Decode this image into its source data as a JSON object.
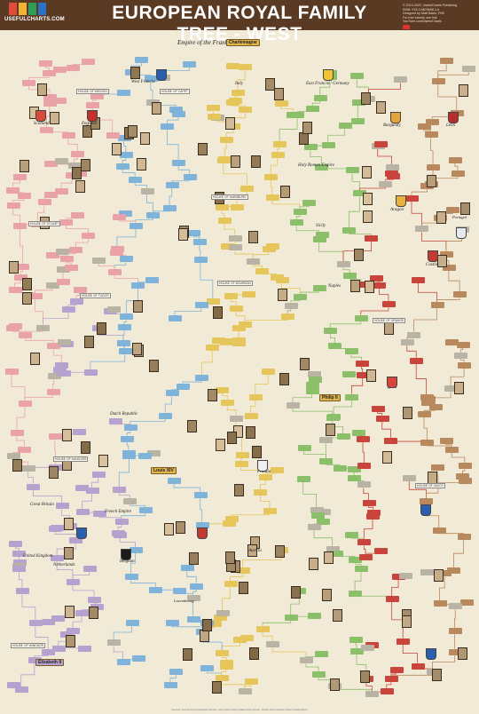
{
  "header": {
    "title": "EUROPEAN ROYAL FAMILY TREE - WEST",
    "logo_text": "USEFULCHARTS.COM",
    "logo_colors": [
      "#e24b3a",
      "#f2b233",
      "#2f9c57",
      "#2a72c6"
    ],
    "credits": [
      "© 2013-2022, UsefulCharts Publishing",
      "ISBN: 978-0-9878698-1-6",
      "Designed by Matt Baker, PhD",
      "For free tutorial, see link",
      "YouTube.com/UsefulCharts"
    ]
  },
  "regions": {
    "franks": "Empire of the Franks",
    "francia": "West Francia",
    "germany": "East Francia / Germany",
    "italy": "Italy",
    "scotland": "Scotland",
    "england": "England",
    "burgundy": "Burgundy",
    "leon": "León",
    "hre": "Holy Roman Empire",
    "sicily": "Sicily",
    "aragon": "Aragon",
    "portugal": "Portugal",
    "castile": "Castile",
    "naples": "Naples",
    "spain": "Spain",
    "dutch": "Dutch Republic",
    "prussia": "Prussia",
    "gb": "Great Britain",
    "french_empire": "French Empire",
    "uk": "United Kingdom",
    "netherlands": "Netherlands",
    "belgium": "Belgium",
    "luxembourg": "Luxembourg",
    "austria": "Austria"
  },
  "featured": {
    "charlemagne": "Charlemagne",
    "philip2": "Philip II",
    "louis14": "Louis XIV",
    "elizabeth2": "Elizabeth II"
  },
  "houses": {
    "h1": "HOUSE OF WESSEX",
    "h2": "HOUSE OF CAPET",
    "h3": "HOUSE OF HABSBURG",
    "h4": "HOUSE OF BOURBON",
    "h5": "HOUSE OF STUART",
    "h6": "HOUSE OF TUDOR",
    "h7": "HOUSE OF HANOVER",
    "h8": "HOUSE OF ORANGE",
    "h9": "HOUSE OF SAVOY",
    "h10": "HOUSE OF WINDSOR"
  },
  "legend": {
    "red": "#c9453b",
    "pink": "#e9a3a8",
    "blue": "#7fb3d9",
    "yellow": "#e6c55a",
    "green": "#8cbf6a",
    "purple": "#b7a2cf",
    "brown": "#b8895d",
    "grey": "#b9b3a5"
  },
  "footer": "Sources: Numerous genealogical records. Only select family relationships shown. Dotted lines indicate indirect relationships."
}
